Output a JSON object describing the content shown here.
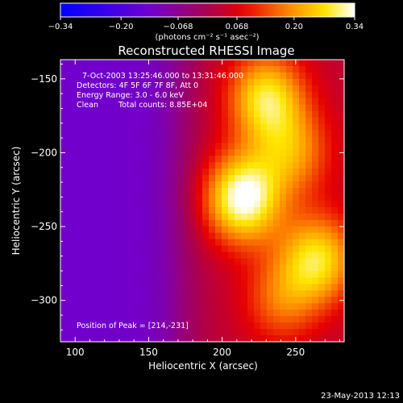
{
  "chart_data": {
    "type": "heatmap",
    "title": "Reconstructed RHESSI Image",
    "xlabel": "Heliocentric X (arcsec)",
    "ylabel": "Heliocentric Y (arcsec)",
    "xlim": [
      90,
      283
    ],
    "ylim": [
      -328,
      -137
    ],
    "x_ticks": [
      100,
      150,
      200,
      250
    ],
    "x_tick_labels": [
      "100",
      "150",
      "200",
      "250"
    ],
    "y_ticks": [
      -150,
      -200,
      -250,
      -300
    ],
    "y_tick_labels": [
      "−150",
      "−200",
      "−250",
      "−300"
    ],
    "colorbar": {
      "min": -0.34,
      "max": 0.34,
      "ticks": [
        -0.34,
        -0.2,
        -0.068,
        0.068,
        0.2,
        0.34
      ],
      "tick_labels": [
        "−0.34",
        "−0.20",
        "−0.068",
        "0.068",
        "0.20",
        "0.34"
      ],
      "unit_label": "(photons cm⁻² s⁻¹ asec⁻²)",
      "colormap": "rhessi-blue-purple-red-yellow-white"
    },
    "annotations": [
      "7-Oct-2003 13:25:46.000 to 13:31:46.000",
      "Detectors: 4F 5F 6F 7F 8F, Att 0",
      "Energy Range: 3.0 - 6.0 keV",
      "Clean",
      "Total counts: 8.85E+04"
    ],
    "peak_label": "Position of Peak = [214,-231]",
    "peak": {
      "x": 214,
      "y": -231
    },
    "sources": [
      {
        "x": 214,
        "y": -231,
        "amplitude": 0.34
      },
      {
        "x": 230,
        "y": -163,
        "amplitude": 0.27
      },
      {
        "x": 265,
        "y": -272,
        "amplitude": 0.26
      },
      {
        "x": 248,
        "y": -200,
        "amplitude": 0.18
      },
      {
        "x": 240,
        "y": -300,
        "amplitude": 0.15
      }
    ],
    "background_level": -0.13
  },
  "footer": {
    "timestamp": "23-May-2013 12:13"
  }
}
